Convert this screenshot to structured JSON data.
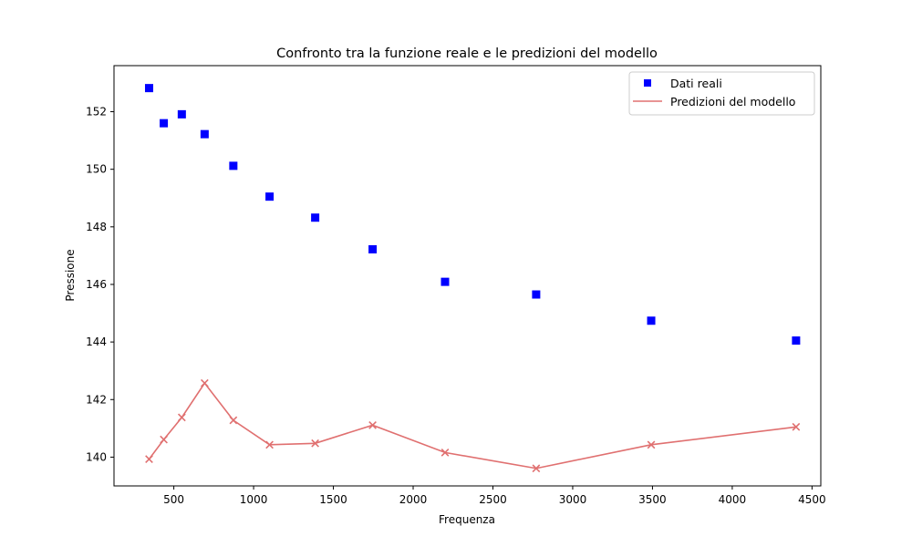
{
  "chart_data": {
    "type": "scatter",
    "title": "Confronto tra la funzione reale e le predizioni del modello",
    "xlabel": "Frequenza",
    "ylabel": "Pressione",
    "xlim": [
      125,
      4555
    ],
    "ylim": [
      139.0,
      153.6
    ],
    "xticks": [
      500,
      1000,
      1500,
      2000,
      2500,
      3000,
      3500,
      4000,
      4500
    ],
    "yticks": [
      140,
      142,
      144,
      146,
      148,
      150,
      152
    ],
    "grid": false,
    "legend_position": "top-right",
    "series": [
      {
        "name": "Dati reali",
        "kind": "scatter",
        "marker": "square",
        "color": "#0000ff",
        "x": [
          345,
          437,
          550,
          693,
          873,
          1100,
          1386,
          1746,
          2200,
          2771,
          3492,
          4400
        ],
        "y": [
          152.82,
          151.6,
          151.91,
          151.22,
          150.12,
          149.05,
          148.32,
          147.22,
          146.09,
          145.65,
          144.74,
          144.05
        ]
      },
      {
        "name": "Predizioni del modello",
        "kind": "line",
        "marker": "x",
        "color": "#e07070",
        "x": [
          345,
          437,
          550,
          693,
          873,
          1100,
          1386,
          1746,
          2200,
          2771,
          3492,
          4400
        ],
        "y": [
          139.93,
          140.61,
          141.38,
          142.57,
          141.28,
          140.43,
          140.48,
          141.11,
          140.16,
          139.61,
          140.43,
          141.05
        ]
      }
    ]
  }
}
